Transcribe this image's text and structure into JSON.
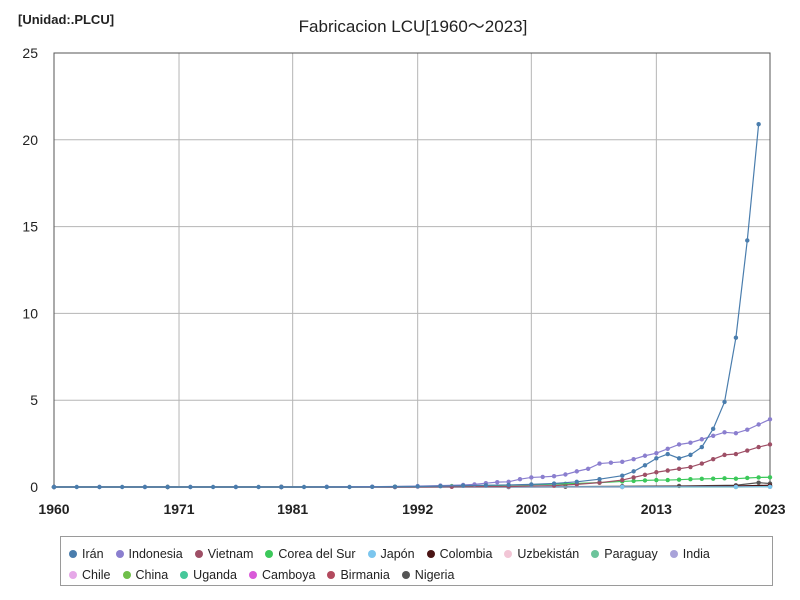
{
  "unit_label": "[Unidad:.PLCU]",
  "chart_data": {
    "type": "line",
    "title": "Fabricacion LCU[1960～2023]",
    "xlabel": "",
    "ylabel": "",
    "xlim": [
      1960,
      2023
    ],
    "ylim": [
      0,
      25
    ],
    "x_ticks": [
      1960,
      1971,
      1981,
      1992,
      2002,
      2013,
      2023
    ],
    "y_ticks": [
      0,
      5,
      10,
      15,
      20,
      25
    ],
    "grid": true,
    "legend_position": "bottom",
    "series": [
      {
        "name": "Irán",
        "color": "#4a7dad",
        "x": [
          1960,
          1962,
          1964,
          1966,
          1968,
          1970,
          1972,
          1974,
          1976,
          1978,
          1980,
          1982,
          1984,
          1986,
          1988,
          1990,
          1992,
          1994,
          1996,
          1998,
          2000,
          2002,
          2004,
          2006,
          2008,
          2010,
          2011,
          2012,
          2013,
          2014,
          2015,
          2016,
          2017,
          2018,
          2019,
          2020,
          2021,
          2022
        ],
        "y": [
          0,
          0,
          0,
          0,
          0,
          0,
          0,
          0,
          0,
          0,
          0,
          0,
          0,
          0,
          0.01,
          0.02,
          0.03,
          0.05,
          0.08,
          0.1,
          0.12,
          0.15,
          0.2,
          0.3,
          0.45,
          0.65,
          0.9,
          1.25,
          1.65,
          1.9,
          1.65,
          1.85,
          2.3,
          3.35,
          4.9,
          8.6,
          14.2,
          20.9
        ]
      },
      {
        "name": "Indonesia",
        "color": "#8b7fcf",
        "x": [
          1960,
          1964,
          1968,
          1972,
          1976,
          1980,
          1984,
          1988,
          1992,
          1994,
          1996,
          1997,
          1998,
          1999,
          2000,
          2001,
          2002,
          2003,
          2004,
          2005,
          2006,
          2007,
          2008,
          2009,
          2010,
          2011,
          2012,
          2013,
          2014,
          2015,
          2016,
          2017,
          2018,
          2019,
          2020,
          2021,
          2022,
          2023
        ],
        "y": [
          0,
          0,
          0,
          0,
          0,
          0,
          0.01,
          0.02,
          0.05,
          0.08,
          0.12,
          0.15,
          0.22,
          0.28,
          0.3,
          0.45,
          0.55,
          0.58,
          0.62,
          0.72,
          0.9,
          1.05,
          1.35,
          1.4,
          1.45,
          1.6,
          1.8,
          1.95,
          2.2,
          2.45,
          2.55,
          2.75,
          2.95,
          3.15,
          3.1,
          3.3,
          3.6,
          3.9
        ]
      },
      {
        "name": "Vietnam",
        "color": "#9e4f66",
        "x": [
          1960,
          1970,
          1980,
          1990,
          1995,
          2000,
          2004,
          2006,
          2008,
          2010,
          2011,
          2012,
          2013,
          2014,
          2015,
          2016,
          2017,
          2018,
          2019,
          2020,
          2021,
          2022,
          2023
        ],
        "y": [
          0,
          0,
          0,
          0,
          0.01,
          0.03,
          0.08,
          0.15,
          0.25,
          0.4,
          0.55,
          0.7,
          0.85,
          0.95,
          1.05,
          1.15,
          1.35,
          1.6,
          1.85,
          1.9,
          2.1,
          2.3,
          2.45
        ]
      },
      {
        "name": "Corea del Sur",
        "color": "#3cc85a",
        "x": [
          1960,
          1970,
          1980,
          1990,
          1995,
          2000,
          2005,
          2008,
          2010,
          2011,
          2012,
          2013,
          2014,
          2015,
          2016,
          2017,
          2018,
          2019,
          2020,
          2021,
          2022,
          2023
        ],
        "y": [
          0,
          0,
          0,
          0.02,
          0.05,
          0.1,
          0.18,
          0.25,
          0.32,
          0.35,
          0.38,
          0.4,
          0.4,
          0.42,
          0.45,
          0.47,
          0.48,
          0.5,
          0.48,
          0.52,
          0.55,
          0.56
        ]
      },
      {
        "name": "Japón",
        "color": "#7cc6ee",
        "x": [
          1960,
          1970,
          1980,
          1990,
          2000,
          2010,
          2020,
          2023
        ],
        "y": [
          0,
          0,
          0,
          0,
          0.01,
          0.01,
          0.01,
          0.01
        ]
      },
      {
        "name": "Colombia",
        "color": "#4a1414",
        "x": [
          1960,
          1970,
          1980,
          1990,
          2000,
          2010,
          2020,
          2023
        ],
        "y": [
          0,
          0,
          0,
          0,
          0.01,
          0.03,
          0.06,
          0.1
        ]
      },
      {
        "name": "Uzbekistán",
        "color": "#f2c6d6",
        "x": [
          1992,
          2000,
          2010,
          2020,
          2023
        ],
        "y": [
          0,
          0,
          0.01,
          0.05,
          0.1
        ]
      },
      {
        "name": "Paraguay",
        "color": "#6cc49b",
        "x": [
          1960,
          1980,
          2000,
          2010,
          2020,
          2023
        ],
        "y": [
          0,
          0,
          0,
          0.01,
          0.02,
          0.03
        ]
      },
      {
        "name": "India",
        "color": "#a9a3d9",
        "x": [
          1960,
          1980,
          2000,
          2010,
          2020,
          2023
        ],
        "y": [
          0,
          0,
          0,
          0.01,
          0.02,
          0.03
        ]
      },
      {
        "name": "Chile",
        "color": "#e6a8e8",
        "x": [
          1960,
          1980,
          2000,
          2010,
          2020,
          2023
        ],
        "y": [
          0,
          0,
          0,
          0,
          0.01,
          0.01
        ]
      },
      {
        "name": "China",
        "color": "#6fbf4a",
        "x": [
          1960,
          1980,
          2000,
          2010,
          2020,
          2023
        ],
        "y": [
          0,
          0,
          0,
          0,
          0,
          0.01
        ]
      },
      {
        "name": "Uganda",
        "color": "#46c89a",
        "x": [
          1960,
          1980,
          2000,
          2010,
          2020,
          2023
        ],
        "y": [
          0,
          0,
          0,
          0.01,
          0.03,
          0.05
        ]
      },
      {
        "name": "Camboya",
        "color": "#d95ad8",
        "x": [
          1960,
          1980,
          2000,
          2010,
          2020,
          2023
        ],
        "y": [
          0,
          0,
          0,
          0,
          0.01,
          0.02
        ]
      },
      {
        "name": "Birmania",
        "color": "#b34a5e",
        "x": [
          1960,
          1980,
          2000,
          2010,
          2020,
          2023
        ],
        "y": [
          0,
          0,
          0,
          0.01,
          0.03,
          0.05
        ]
      },
      {
        "name": "Nigeria",
        "color": "#555555",
        "x": [
          1960,
          1980,
          2000,
          2005,
          2010,
          2015,
          2020,
          2022,
          2023
        ],
        "y": [
          0,
          0,
          0.01,
          0.02,
          0.04,
          0.06,
          0.1,
          0.25,
          0.2
        ]
      }
    ]
  }
}
